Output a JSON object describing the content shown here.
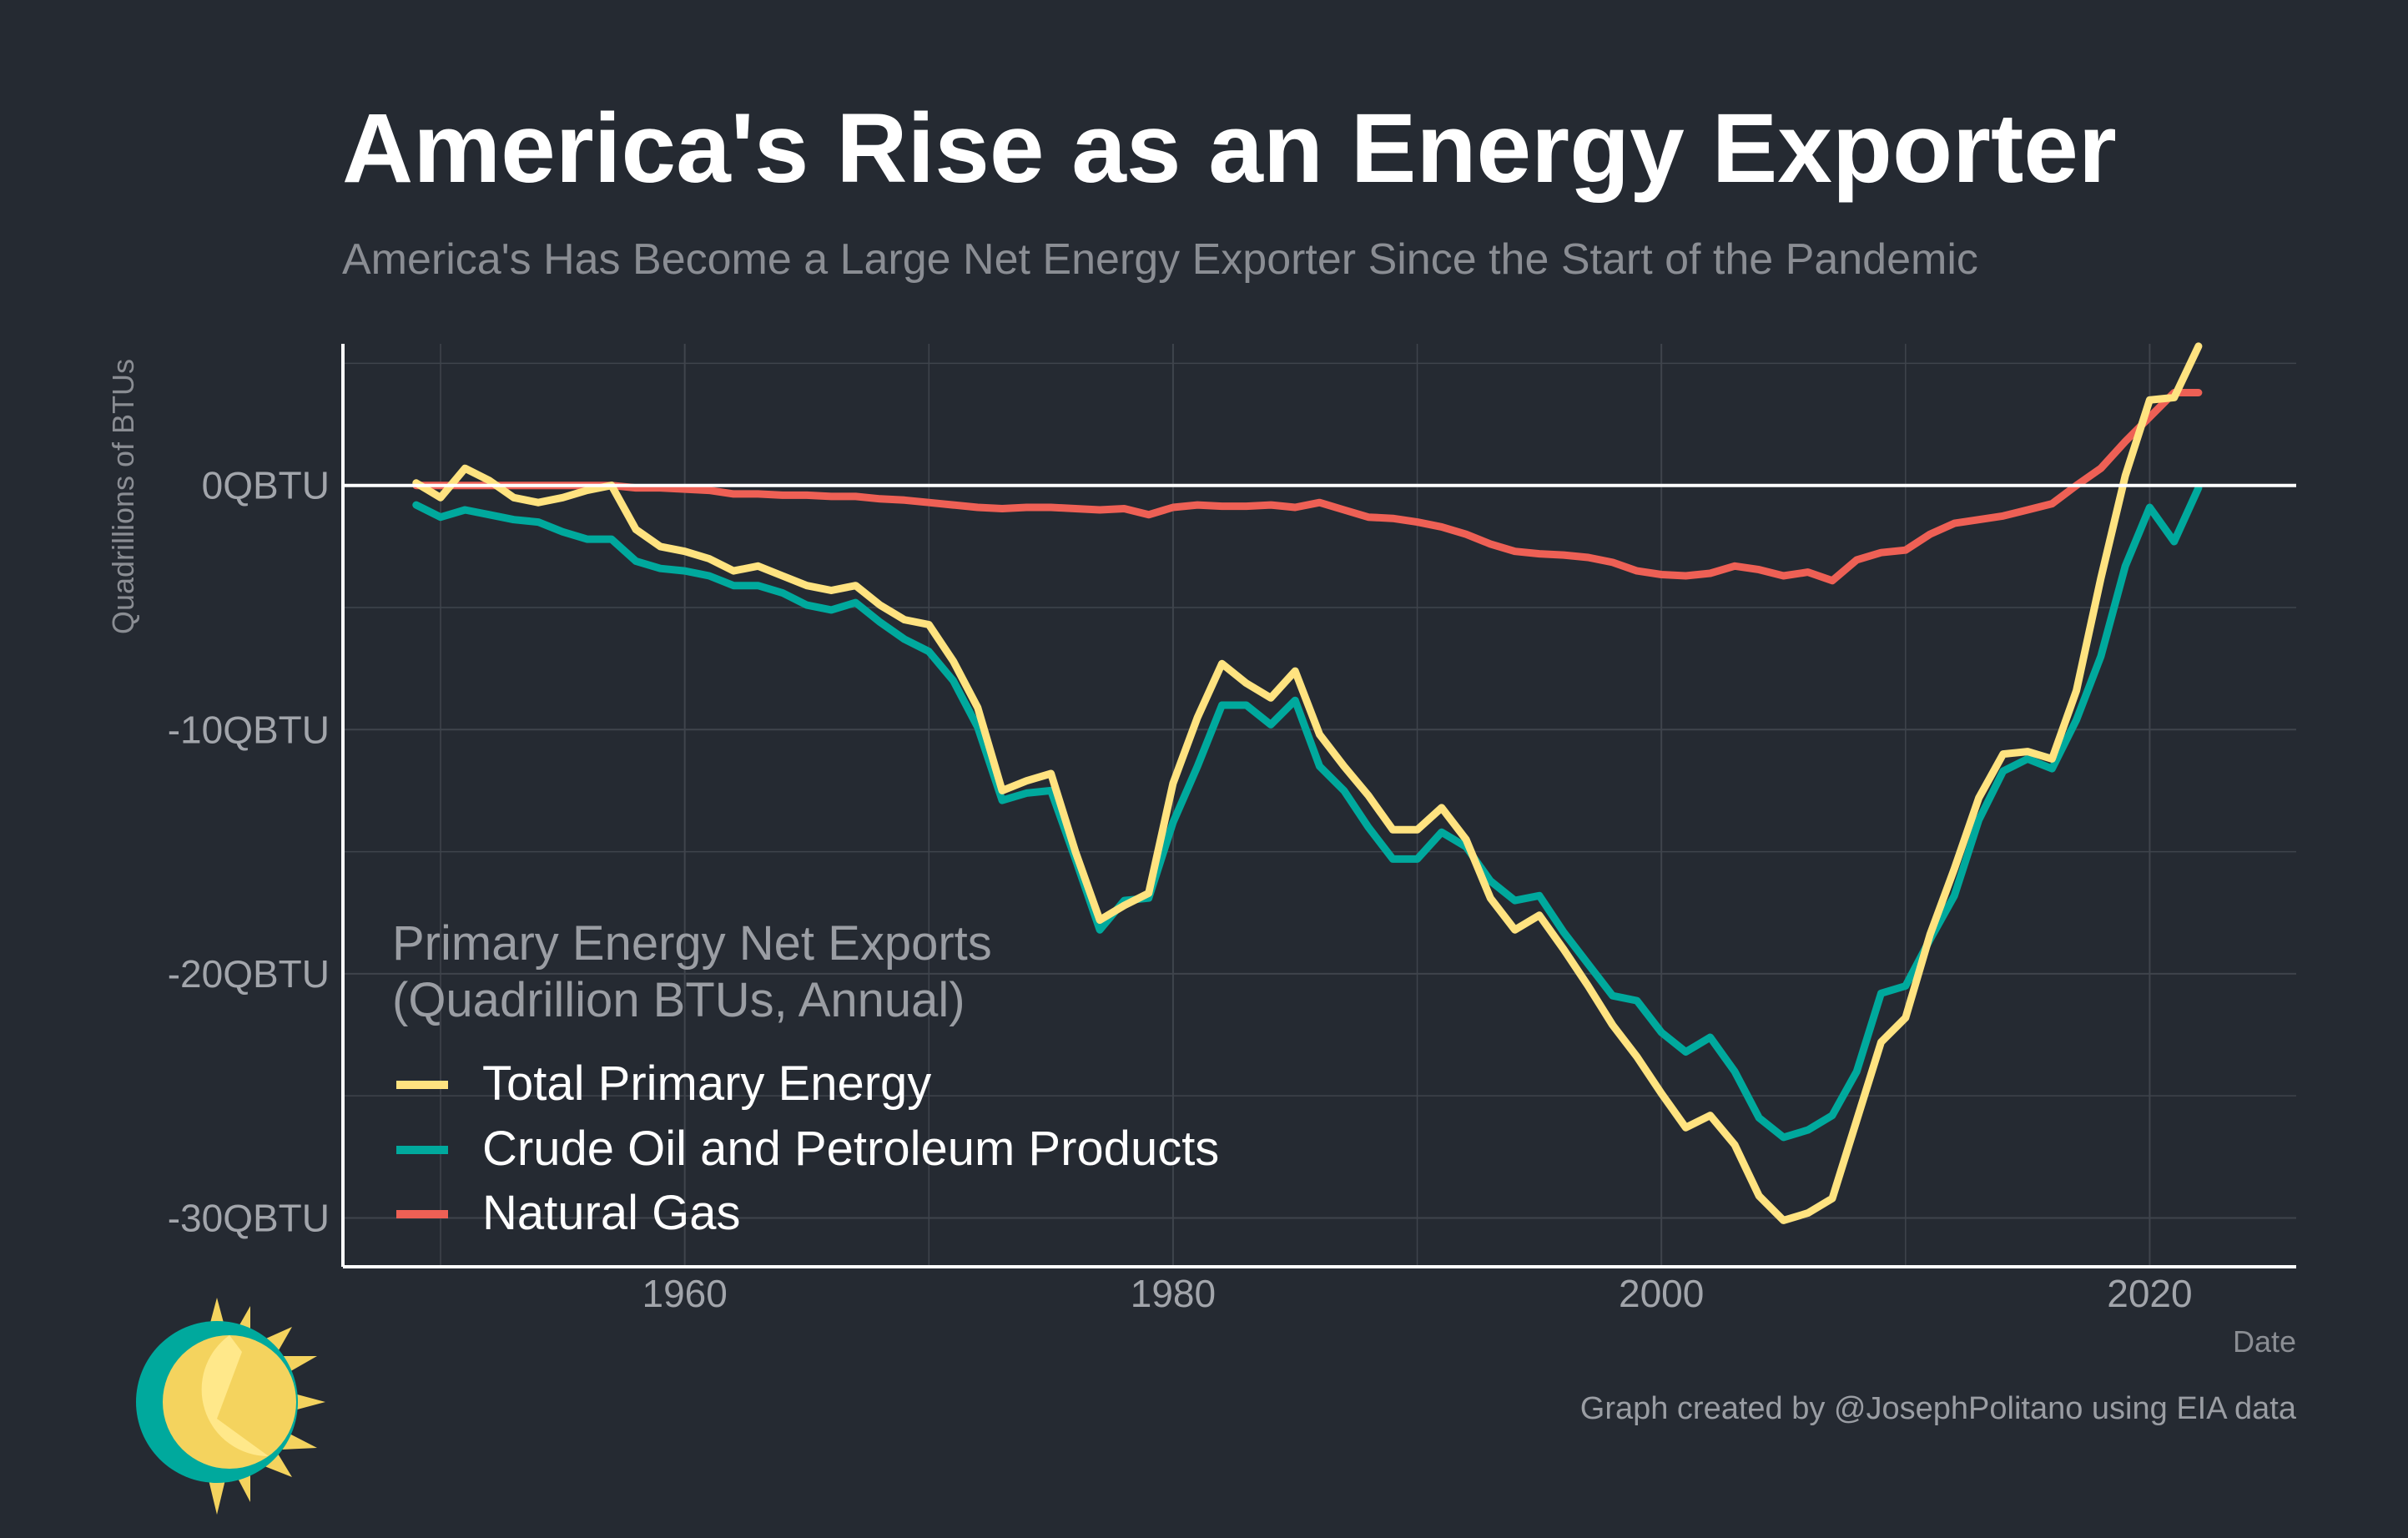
{
  "chart_data": {
    "type": "line",
    "title": "America's Rise as an Energy Exporter",
    "subtitle": "America's Has Become a Large Net Energy Exporter Since the Start of the Pandemic",
    "ylabel": "Quadrillions of BTUs",
    "xlabel": "Date",
    "xlim": [
      1946,
      2026
    ],
    "ylim": [
      -32,
      5.8
    ],
    "x_ticks": [
      1960,
      1980,
      2000,
      2020
    ],
    "y_ticks": [
      0,
      -10,
      -20,
      -30
    ],
    "y_tick_labels": [
      "0QBTU",
      "-10QBTU",
      "-20QBTU",
      "-30QBTU"
    ],
    "grid": true,
    "legend": {
      "title_line1": "Primary Energy Net Exports",
      "title_line2": "(Quadrillion BTUs, Annual)",
      "position": "bottom-left"
    },
    "caption": "Graph created by @JosephPolitano using EIA data",
    "x": [
      1949,
      1950,
      1951,
      1952,
      1953,
      1954,
      1955,
      1956,
      1957,
      1958,
      1959,
      1960,
      1961,
      1962,
      1963,
      1964,
      1965,
      1966,
      1967,
      1968,
      1969,
      1970,
      1971,
      1972,
      1973,
      1974,
      1975,
      1976,
      1977,
      1978,
      1979,
      1980,
      1981,
      1982,
      1983,
      1984,
      1985,
      1986,
      1987,
      1988,
      1989,
      1990,
      1991,
      1992,
      1993,
      1994,
      1995,
      1996,
      1997,
      1998,
      1999,
      2000,
      2001,
      2002,
      2003,
      2004,
      2005,
      2006,
      2007,
      2008,
      2009,
      2010,
      2011,
      2012,
      2013,
      2014,
      2015,
      2016,
      2017,
      2018,
      2019,
      2020,
      2021,
      2022
    ],
    "series": [
      {
        "name": "Total Primary Energy",
        "color": "#ffe380",
        "values": [
          0.1,
          -0.5,
          0.7,
          0.2,
          -0.5,
          -0.7,
          -0.5,
          -0.2,
          0.0,
          -1.8,
          -2.5,
          -2.7,
          -3.0,
          -3.5,
          -3.3,
          -3.7,
          -4.1,
          -4.3,
          -4.1,
          -4.9,
          -5.5,
          -5.7,
          -7.2,
          -9.1,
          -12.5,
          -12.1,
          -11.8,
          -15.0,
          -17.8,
          -17.2,
          -16.7,
          -12.2,
          -9.5,
          -7.3,
          -8.1,
          -8.7,
          -7.6,
          -10.2,
          -11.5,
          -12.7,
          -14.1,
          -14.1,
          -13.2,
          -14.5,
          -16.9,
          -18.2,
          -17.6,
          -19.0,
          -20.5,
          -22.1,
          -23.4,
          -24.9,
          -26.3,
          -25.8,
          -27.0,
          -29.1,
          -30.1,
          -29.8,
          -29.2,
          -26.0,
          -22.8,
          -21.8,
          -18.4,
          -15.7,
          -12.8,
          -11.0,
          -10.9,
          -11.2,
          -8.4,
          -3.8,
          0.4,
          3.5,
          3.6,
          5.7
        ]
      },
      {
        "name": "Crude Oil and Petroleum Products",
        "color": "#00a99d",
        "values": [
          -0.8,
          -1.3,
          -1.0,
          -1.2,
          -1.4,
          -1.5,
          -1.9,
          -2.2,
          -2.2,
          -3.1,
          -3.4,
          -3.5,
          -3.7,
          -4.1,
          -4.1,
          -4.4,
          -4.9,
          -5.1,
          -4.8,
          -5.6,
          -6.3,
          -6.8,
          -8.0,
          -9.9,
          -12.9,
          -12.6,
          -12.5,
          -15.3,
          -18.2,
          -17.0,
          -16.9,
          -13.8,
          -11.5,
          -9.0,
          -9.0,
          -9.8,
          -8.8,
          -11.5,
          -12.5,
          -14.0,
          -15.3,
          -15.3,
          -14.2,
          -14.8,
          -16.2,
          -17.0,
          -16.8,
          -18.3,
          -19.6,
          -20.9,
          -21.1,
          -22.4,
          -23.2,
          -22.6,
          -24.0,
          -25.9,
          -26.7,
          -26.4,
          -25.8,
          -24.0,
          -20.8,
          -20.5,
          -18.6,
          -16.8,
          -13.7,
          -11.7,
          -11.2,
          -11.6,
          -9.6,
          -7.0,
          -3.3,
          -0.9,
          -2.3,
          -0.1
        ]
      },
      {
        "name": "Natural Gas",
        "color": "#ee6055",
        "values": [
          0.0,
          0.0,
          0.0,
          0.0,
          0.0,
          0.0,
          0.0,
          0.0,
          0.0,
          -0.1,
          -0.1,
          -0.15,
          -0.2,
          -0.35,
          -0.35,
          -0.4,
          -0.4,
          -0.45,
          -0.45,
          -0.55,
          -0.6,
          -0.7,
          -0.8,
          -0.9,
          -0.95,
          -0.9,
          -0.9,
          -0.95,
          -1.0,
          -0.95,
          -1.2,
          -0.9,
          -0.8,
          -0.85,
          -0.85,
          -0.8,
          -0.9,
          -0.7,
          -1.0,
          -1.3,
          -1.35,
          -1.5,
          -1.7,
          -2.0,
          -2.4,
          -2.7,
          -2.8,
          -2.85,
          -2.95,
          -3.15,
          -3.5,
          -3.65,
          -3.7,
          -3.6,
          -3.3,
          -3.45,
          -3.7,
          -3.55,
          -3.9,
          -3.05,
          -2.75,
          -2.65,
          -2.0,
          -1.55,
          -1.4,
          -1.25,
          -1.0,
          -0.75,
          0.0,
          0.7,
          1.8,
          2.8,
          3.8,
          3.8
        ]
      }
    ]
  }
}
